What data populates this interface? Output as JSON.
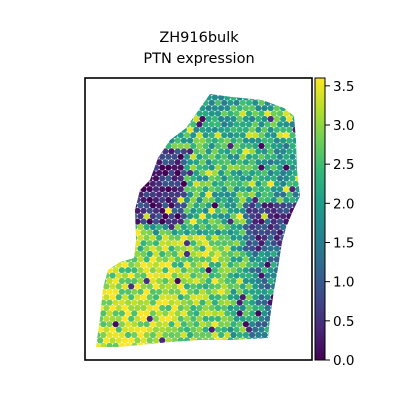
{
  "chart_data": {
    "type": "heatmap",
    "title": "ZH916bulk",
    "subtitle": "PTN expression",
    "xlabel": "",
    "ylabel": "",
    "colorbar": {
      "min": 0.0,
      "max": 3.6,
      "colormap": "viridis",
      "ticks": [
        0.0,
        0.5,
        1.0,
        1.5,
        2.0,
        2.5,
        3.0,
        3.5
      ],
      "tick_labels": [
        "0.0",
        "0.5",
        "1.0",
        "1.5",
        "2.0",
        "2.5",
        "3.0",
        "3.5"
      ]
    },
    "regions": [
      {
        "area": "lower-left lobe",
        "approx_value": 3.1
      },
      {
        "area": "central body",
        "approx_value": 2.6
      },
      {
        "area": "upper-left edge",
        "approx_value": 0.4
      },
      {
        "area": "right edge",
        "approx_value": 1.6
      },
      {
        "area": "top",
        "approx_value": 2.3
      }
    ],
    "grid": false,
    "axes_ticks": false
  }
}
